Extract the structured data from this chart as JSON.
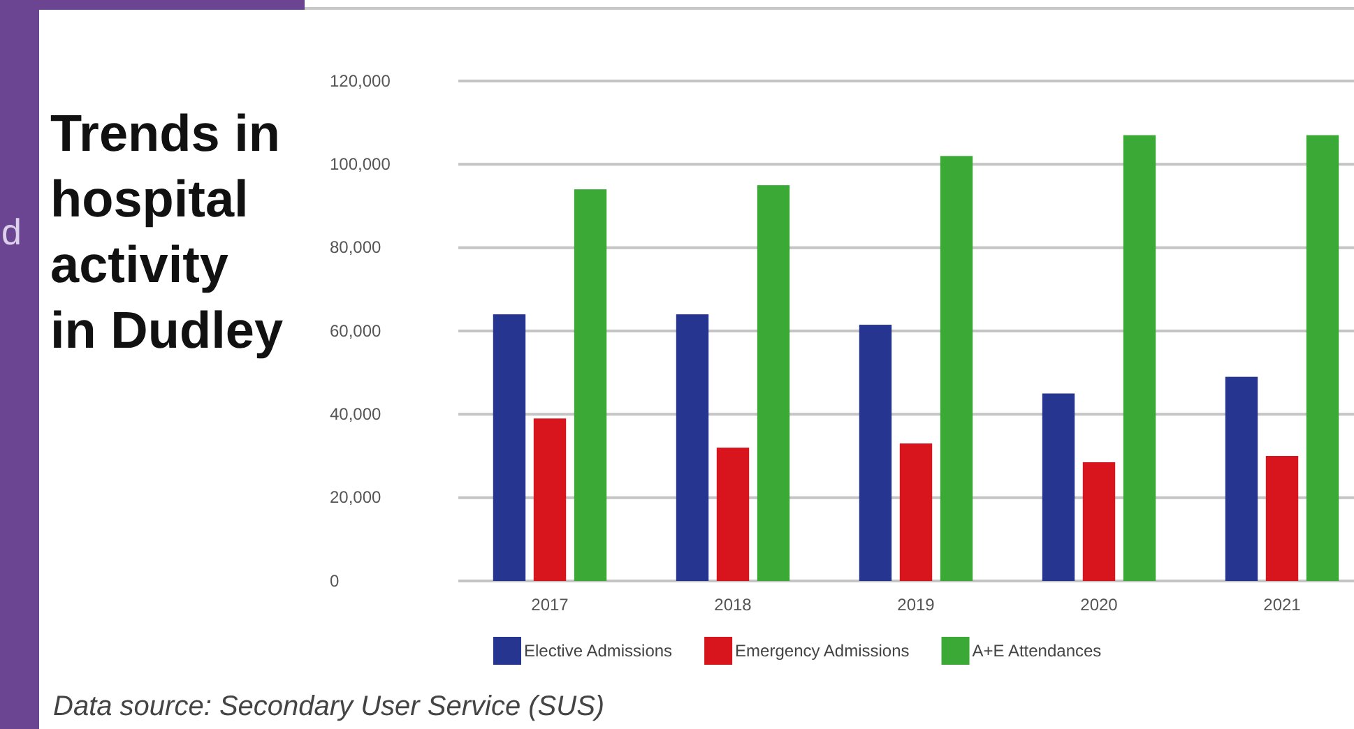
{
  "chart_data": {
    "type": "bar",
    "title": "Trends in hospital activity in Dudley",
    "categories": [
      "2017",
      "2018",
      "2019",
      "2020",
      "2021"
    ],
    "series": [
      {
        "name": "Elective Admissions",
        "color": "#26358f",
        "values": [
          64000,
          64000,
          61500,
          45000,
          49000
        ]
      },
      {
        "name": "Emergency Admissions",
        "color": "#d8141c",
        "values": [
          39000,
          32000,
          33000,
          28500,
          30000
        ]
      },
      {
        "name": "A+E Attendances",
        "color": "#3aa935",
        "values": [
          94000,
          95000,
          102000,
          107000,
          107000
        ]
      }
    ],
    "ylim": [
      0,
      120000
    ],
    "yticks": [
      0,
      {
        "value": 20000,
        "label": "20,000"
      },
      {
        "value": 40000,
        "label": "40,000"
      },
      {
        "value": 60000,
        "label": "60,000"
      },
      {
        "value": 80000,
        "label": "80,000"
      },
      {
        "value": 100000,
        "label": "100,000"
      },
      {
        "value": 120000,
        "label": "120,000"
      }
    ],
    "grid": "y",
    "legend": "bottom",
    "annotations": [
      "d",
      "Data source: Secondary User Service (SUS)"
    ]
  }
}
